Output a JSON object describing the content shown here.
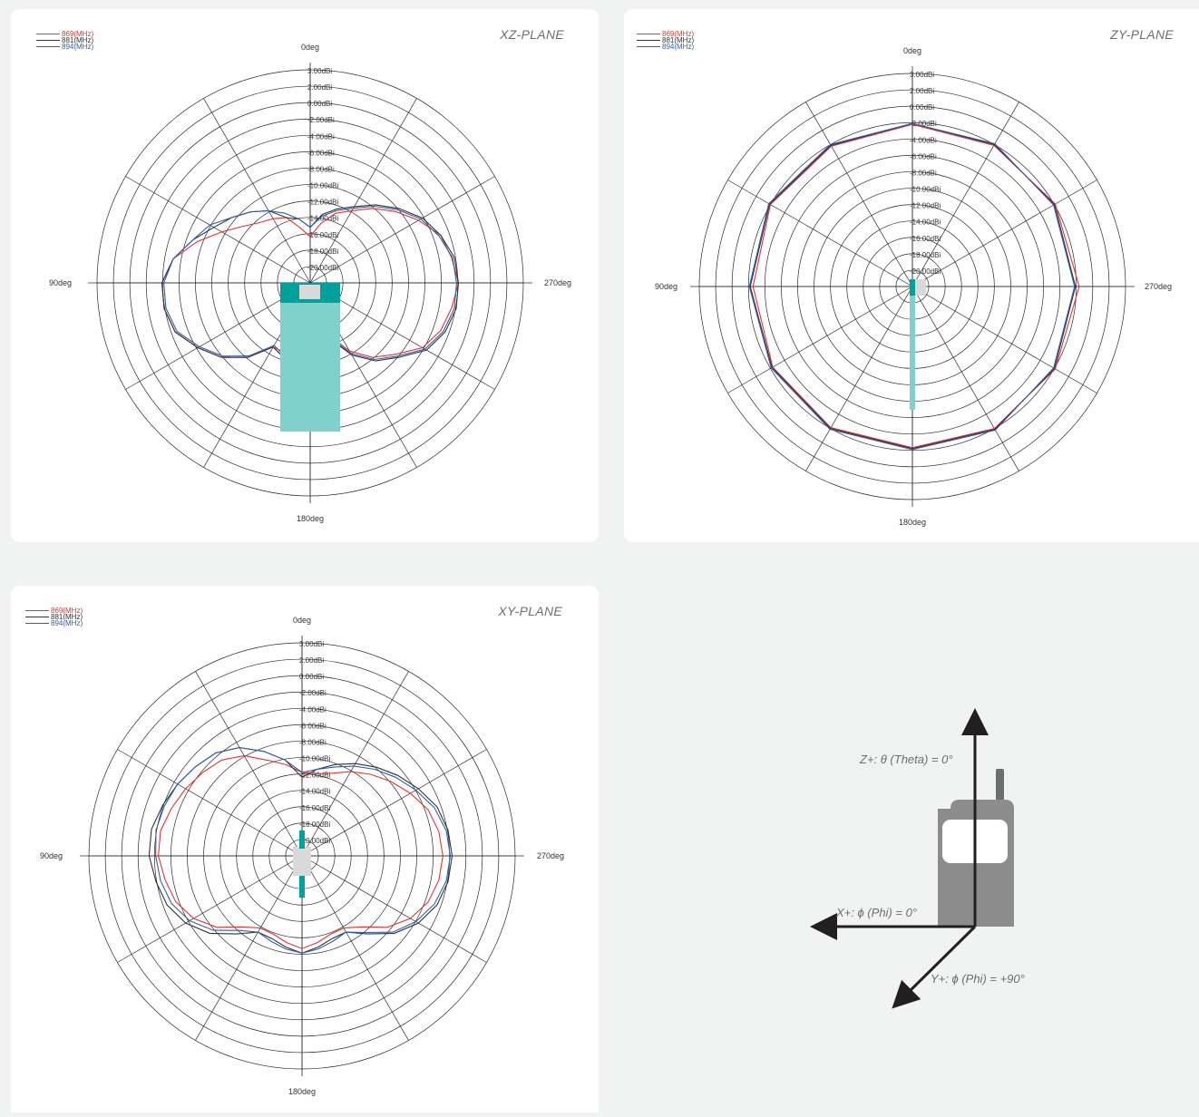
{
  "legend": [
    {
      "label": "869(MHz)",
      "color": "#e8322f"
    },
    {
      "label": "881(MHz)",
      "color": "#333333"
    },
    {
      "label": "894(MHz)",
      "color": "#2e5fae"
    }
  ],
  "ring_labels": [
    "3.00dBi",
    "2.00dBi",
    "0.00dBi",
    "-2.00dBi",
    "-4.00dBi",
    "-6.00dBi",
    "-8.00dBi",
    "-10.00dBi",
    "-12.00dBi",
    "-14.00dBi",
    "-16.00dBi",
    "-18.00dBi",
    "-20.00dBi"
  ],
  "angle_labels": {
    "top": "0deg",
    "left": "90deg",
    "right": "270deg",
    "bottom": "180deg"
  },
  "colors": {
    "device_dark": "#00a19a",
    "device_light": "#80d0cb",
    "device_grey": "#d9d9d9",
    "phone_body": "#8c8c8c",
    "arrow": "#231f20"
  },
  "chart_data": [
    {
      "type": "polar",
      "title": "XZ-PLANE",
      "radial_range_dBi": [
        -20,
        3
      ],
      "angle_unit": "deg",
      "series": [
        {
          "name": "869(MHz)",
          "points": [
            [
              0,
              -15
            ],
            [
              10,
              -14
            ],
            [
              20,
              -12.5
            ],
            [
              30,
              -12
            ],
            [
              40,
              -11.5
            ],
            [
              50,
              -10.5
            ],
            [
              60,
              -9
            ],
            [
              70,
              -7
            ],
            [
              80,
              -5
            ],
            [
              90,
              -4
            ],
            [
              100,
              -4
            ],
            [
              110,
              -4.5
            ],
            [
              120,
              -6
            ],
            [
              130,
              -7.5
            ],
            [
              140,
              -9.5
            ],
            [
              150,
              -12
            ],
            [
              160,
              -12
            ],
            [
              170,
              -11
            ],
            [
              180,
              -14
            ],
            [
              190,
              -16
            ],
            [
              200,
              -14
            ],
            [
              210,
              -11.5
            ],
            [
              220,
              -9.5
            ],
            [
              230,
              -8
            ],
            [
              240,
              -6
            ],
            [
              250,
              -5
            ],
            [
              260,
              -4.5
            ],
            [
              270,
              -4
            ],
            [
              280,
              -4.5
            ],
            [
              290,
              -5
            ],
            [
              300,
              -6.5
            ],
            [
              310,
              -8
            ],
            [
              320,
              -9.5
            ],
            [
              330,
              -11
            ],
            [
              340,
              -12
            ],
            [
              350,
              -13.5
            ]
          ]
        },
        {
          "name": "881(MHz)",
          "points": [
            [
              0,
              -14
            ],
            [
              10,
              -13
            ],
            [
              20,
              -12.5
            ],
            [
              30,
              -11
            ],
            [
              40,
              -10
            ],
            [
              50,
              -9
            ],
            [
              60,
              -8
            ],
            [
              70,
              -6.5
            ],
            [
              80,
              -5
            ],
            [
              90,
              -4
            ],
            [
              100,
              -4
            ],
            [
              110,
              -4.5
            ],
            [
              120,
              -6
            ],
            [
              130,
              -7.5
            ],
            [
              140,
              -9.5
            ],
            [
              150,
              -12
            ],
            [
              160,
              -11.5
            ],
            [
              170,
              -10.5
            ],
            [
              180,
              -14
            ],
            [
              190,
              -16
            ],
            [
              200,
              -13.5
            ],
            [
              210,
              -11
            ],
            [
              220,
              -9
            ],
            [
              230,
              -7.5
            ],
            [
              240,
              -5.5
            ],
            [
              250,
              -4.5
            ],
            [
              260,
              -4
            ],
            [
              270,
              -4
            ],
            [
              280,
              -4.2
            ],
            [
              290,
              -5
            ],
            [
              300,
              -6
            ],
            [
              310,
              -7.5
            ],
            [
              320,
              -9
            ],
            [
              330,
              -10.5
            ],
            [
              340,
              -11.5
            ],
            [
              350,
              -12.5
            ]
          ]
        },
        {
          "name": "894(MHz)",
          "points": [
            [
              0,
              -14
            ],
            [
              10,
              -13
            ],
            [
              20,
              -12
            ],
            [
              30,
              -11
            ],
            [
              40,
              -10
            ],
            [
              50,
              -9
            ],
            [
              60,
              -7.5
            ],
            [
              70,
              -6.5
            ],
            [
              80,
              -5
            ],
            [
              90,
              -4.2
            ],
            [
              100,
              -4.2
            ],
            [
              110,
              -4.7
            ],
            [
              120,
              -6.2
            ],
            [
              130,
              -7.7
            ],
            [
              140,
              -9.7
            ],
            [
              150,
              -12.2
            ],
            [
              160,
              -11.7
            ],
            [
              170,
              -10.7
            ],
            [
              180,
              -14.2
            ],
            [
              190,
              -16.2
            ],
            [
              200,
              -13.7
            ],
            [
              210,
              -11.2
            ],
            [
              220,
              -9.2
            ],
            [
              230,
              -7.7
            ],
            [
              240,
              -5.7
            ],
            [
              250,
              -4.7
            ],
            [
              260,
              -4.2
            ],
            [
              270,
              -4.2
            ],
            [
              280,
              -4.4
            ],
            [
              290,
              -5.2
            ],
            [
              300,
              -6.2
            ],
            [
              310,
              -7.7
            ],
            [
              320,
              -9.2
            ],
            [
              330,
              -10.7
            ],
            [
              340,
              -11.7
            ],
            [
              350,
              -12.7
            ]
          ]
        }
      ]
    },
    {
      "type": "polar",
      "title": "ZY-PLANE",
      "radial_range_dBi": [
        -20,
        3
      ],
      "angle_unit": "deg",
      "series": [
        {
          "name": "869(MHz)",
          "points": [
            [
              0,
              -2.5
            ],
            [
              30,
              -2.5
            ],
            [
              60,
              -2.3
            ],
            [
              90,
              -2.8
            ],
            [
              120,
              -2.6
            ],
            [
              150,
              -2.4
            ],
            [
              180,
              -2.6
            ],
            [
              210,
              -2.3
            ],
            [
              240,
              -2.2
            ],
            [
              270,
              -2
            ],
            [
              300,
              -2.2
            ],
            [
              330,
              -2.4
            ],
            [
              360,
              -2.5
            ]
          ]
        },
        {
          "name": "881(MHz)",
          "points": [
            [
              0,
              -2.4
            ],
            [
              30,
              -2.4
            ],
            [
              60,
              -2.2
            ],
            [
              90,
              -2.5
            ],
            [
              120,
              -2.5
            ],
            [
              150,
              -2.3
            ],
            [
              180,
              -2.5
            ],
            [
              210,
              -2.2
            ],
            [
              240,
              -2.3
            ],
            [
              270,
              -2.4
            ],
            [
              300,
              -2.3
            ],
            [
              330,
              -2.3
            ],
            [
              360,
              -2.4
            ]
          ]
        },
        {
          "name": "894(MHz)",
          "points": [
            [
              0,
              -2.4
            ],
            [
              30,
              -2.3
            ],
            [
              60,
              -2.1
            ],
            [
              90,
              -2.4
            ],
            [
              120,
              -2.4
            ],
            [
              150,
              -2.2
            ],
            [
              180,
              -2.4
            ],
            [
              210,
              -2.1
            ],
            [
              240,
              -2.4
            ],
            [
              270,
              -2.5
            ],
            [
              300,
              -2.4
            ],
            [
              330,
              -2.2
            ],
            [
              360,
              -2.4
            ]
          ]
        }
      ]
    },
    {
      "type": "polar",
      "title": "XY-PLANE",
      "radial_range_dBi": [
        -20,
        3
      ],
      "angle_unit": "deg",
      "series": [
        {
          "name": "869(MHz)",
          "points": [
            [
              0,
              -11
            ],
            [
              10,
              -10
            ],
            [
              20,
              -9
            ],
            [
              30,
              -7.5
            ],
            [
              40,
              -6.5
            ],
            [
              50,
              -6
            ],
            [
              60,
              -5.5
            ],
            [
              70,
              -5
            ],
            [
              80,
              -4.5
            ],
            [
              90,
              -4.5
            ],
            [
              100,
              -5
            ],
            [
              110,
              -5.5
            ],
            [
              120,
              -6.5
            ],
            [
              130,
              -8
            ],
            [
              140,
              -10
            ],
            [
              150,
              -11
            ],
            [
              160,
              -11
            ],
            [
              170,
              -10.5
            ],
            [
              180,
              -10
            ],
            [
              190,
              -10.5
            ],
            [
              200,
              -11
            ],
            [
              210,
              -11
            ],
            [
              220,
              -10
            ],
            [
              230,
              -8
            ],
            [
              240,
              -6.5
            ],
            [
              250,
              -5.5
            ],
            [
              260,
              -5
            ],
            [
              270,
              -4.8
            ],
            [
              280,
              -5
            ],
            [
              290,
              -5.5
            ],
            [
              300,
              -6.5
            ],
            [
              310,
              -7.5
            ],
            [
              320,
              -8.5
            ],
            [
              330,
              -9.5
            ],
            [
              340,
              -10.5
            ],
            [
              350,
              -11
            ]
          ]
        },
        {
          "name": "881(MHz)",
          "points": [
            [
              0,
              -11.5
            ],
            [
              10,
              -9.5
            ],
            [
              20,
              -8
            ],
            [
              30,
              -6.5
            ],
            [
              40,
              -5.5
            ],
            [
              50,
              -5
            ],
            [
              60,
              -4.5
            ],
            [
              70,
              -4
            ],
            [
              80,
              -3.5
            ],
            [
              90,
              -3.5
            ],
            [
              100,
              -4
            ],
            [
              110,
              -4.5
            ],
            [
              120,
              -5.5
            ],
            [
              130,
              -7
            ],
            [
              140,
              -9
            ],
            [
              150,
              -10.5
            ],
            [
              160,
              -10.5
            ],
            [
              170,
              -10
            ],
            [
              180,
              -9.5
            ],
            [
              190,
              -10
            ],
            [
              200,
              -10.5
            ],
            [
              210,
              -10.5
            ],
            [
              220,
              -9
            ],
            [
              230,
              -7
            ],
            [
              240,
              -5.5
            ],
            [
              250,
              -4.5
            ],
            [
              260,
              -4
            ],
            [
              270,
              -3.8
            ],
            [
              280,
              -4
            ],
            [
              290,
              -4.5
            ],
            [
              300,
              -5.5
            ],
            [
              310,
              -6.5
            ],
            [
              320,
              -7.5
            ],
            [
              330,
              -8.5
            ],
            [
              340,
              -9.5
            ],
            [
              350,
              -10.5
            ]
          ]
        },
        {
          "name": "894(MHz)",
          "points": [
            [
              0,
              -11
            ],
            [
              10,
              -9.5
            ],
            [
              20,
              -8
            ],
            [
              30,
              -6.5
            ],
            [
              40,
              -5.5
            ],
            [
              50,
              -5
            ],
            [
              60,
              -4.5
            ],
            [
              70,
              -4.2
            ],
            [
              80,
              -4
            ],
            [
              90,
              -4.2
            ],
            [
              100,
              -4.5
            ],
            [
              110,
              -5
            ],
            [
              120,
              -6
            ],
            [
              130,
              -7.5
            ],
            [
              140,
              -9.5
            ],
            [
              150,
              -10.5
            ],
            [
              160,
              -10.2
            ],
            [
              170,
              -9.8
            ],
            [
              180,
              -9.5
            ],
            [
              190,
              -9.8
            ],
            [
              200,
              -10.2
            ],
            [
              210,
              -10.5
            ],
            [
              220,
              -9.2
            ],
            [
              230,
              -7.2
            ],
            [
              240,
              -5.8
            ],
            [
              250,
              -4.8
            ],
            [
              260,
              -4.2
            ],
            [
              270,
              -4
            ],
            [
              280,
              -4.2
            ],
            [
              290,
              -4.8
            ],
            [
              300,
              -5.8
            ],
            [
              310,
              -6.8
            ],
            [
              320,
              -7.8
            ],
            [
              330,
              -8.8
            ],
            [
              340,
              -9.8
            ],
            [
              350,
              -10.5
            ]
          ]
        }
      ]
    }
  ],
  "orientation": {
    "z_label": "Z+: θ (Theta) = 0°",
    "x_label": "X+: ϕ (Phi) = 0°",
    "y_label": "Y+: ϕ (Phi) = +90°"
  }
}
